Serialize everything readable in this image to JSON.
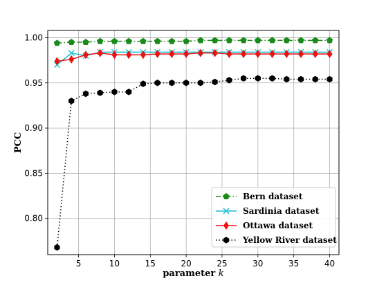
{
  "chart_data": {
    "type": "line",
    "xlabel_main": "parameter ",
    "xlabel_var": "k",
    "ylabel": "PCC",
    "xlim": [
      0.7,
      41.3
    ],
    "ylim": [
      0.76,
      1.008
    ],
    "xticks": [
      5,
      10,
      15,
      20,
      25,
      30,
      35,
      40
    ],
    "yticks": [
      0.8,
      0.85,
      0.9,
      0.95,
      1.0
    ],
    "ytick_labels": [
      "0.80",
      "0.85",
      "0.90",
      "0.95",
      "1.00"
    ],
    "grid": true,
    "legend_position": "lower-right",
    "series": [
      {
        "name": "Bern dataset",
        "color": "#1a8a1a",
        "marker": "pentagon",
        "linestyle": "dashdot",
        "x": [
          2,
          4,
          6,
          8,
          10,
          12,
          14,
          16,
          18,
          20,
          22,
          24,
          26,
          28,
          30,
          32,
          34,
          36,
          38,
          40
        ],
        "values": [
          0.994,
          0.995,
          0.995,
          0.996,
          0.996,
          0.996,
          0.996,
          0.996,
          0.996,
          0.996,
          0.997,
          0.997,
          0.997,
          0.997,
          0.997,
          0.997,
          0.997,
          0.997,
          0.997,
          0.997
        ]
      },
      {
        "name": "Sardinia dataset",
        "color": "#17becf",
        "marker": "x",
        "linestyle": "solid",
        "x": [
          2,
          4,
          6,
          8,
          10,
          12,
          14,
          16,
          18,
          20,
          22,
          24,
          26,
          28,
          30,
          32,
          34,
          36,
          38,
          40
        ],
        "values": [
          0.97,
          0.983,
          0.98,
          0.984,
          0.984,
          0.984,
          0.984,
          0.984,
          0.984,
          0.984,
          0.984,
          0.984,
          0.984,
          0.984,
          0.984,
          0.984,
          0.984,
          0.984,
          0.984,
          0.984
        ]
      },
      {
        "name": "Ottawa dataset",
        "color": "#ee1111",
        "marker": "diamond",
        "linestyle": "solid",
        "x": [
          2,
          4,
          6,
          8,
          10,
          12,
          14,
          16,
          18,
          20,
          22,
          24,
          26,
          28,
          30,
          32,
          34,
          36,
          38,
          40
        ],
        "values": [
          0.974,
          0.976,
          0.981,
          0.983,
          0.981,
          0.981,
          0.981,
          0.982,
          0.982,
          0.982,
          0.983,
          0.983,
          0.982,
          0.982,
          0.982,
          0.982,
          0.982,
          0.982,
          0.982,
          0.982
        ]
      },
      {
        "name": "Yellow River dataset",
        "color": "#000000",
        "marker": "hexagon",
        "linestyle": "dotted",
        "x": [
          2,
          4,
          6,
          8,
          10,
          12,
          14,
          16,
          18,
          20,
          22,
          24,
          26,
          28,
          30,
          32,
          34,
          36,
          38,
          40
        ],
        "values": [
          0.768,
          0.93,
          0.938,
          0.939,
          0.94,
          0.94,
          0.949,
          0.95,
          0.95,
          0.95,
          0.95,
          0.951,
          0.953,
          0.955,
          0.955,
          0.955,
          0.954,
          0.954,
          0.954,
          0.954
        ]
      }
    ]
  }
}
